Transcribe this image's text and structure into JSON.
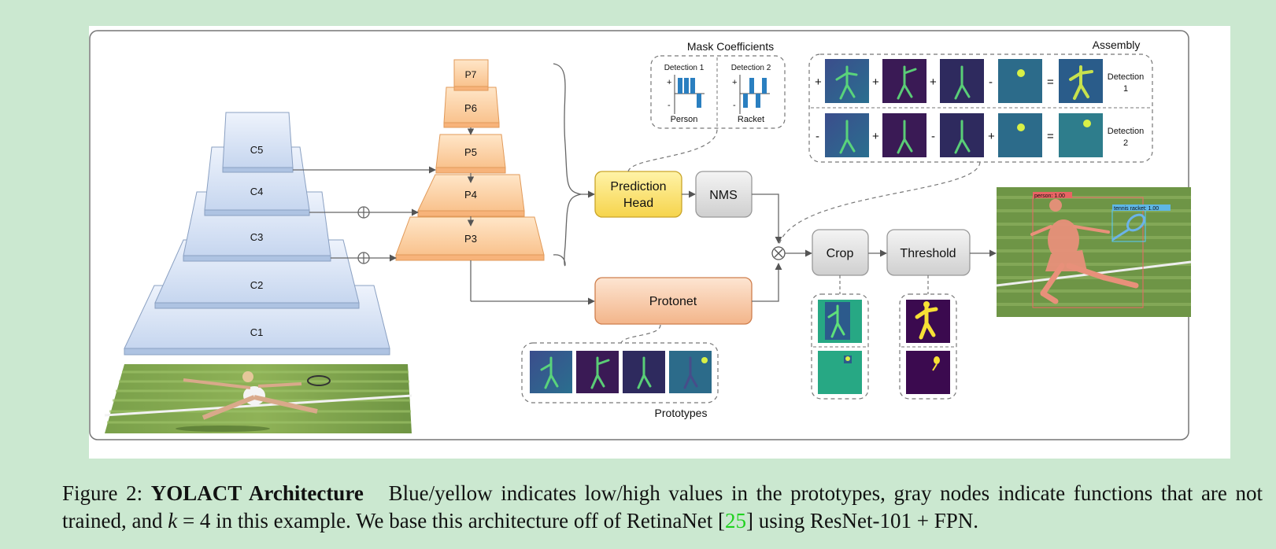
{
  "figure": {
    "backbone_labels": [
      "C1",
      "C2",
      "C3",
      "C4",
      "C5"
    ],
    "fpn_labels": [
      "P3",
      "P4",
      "P5",
      "P6",
      "P7"
    ],
    "prediction_head": [
      "Prediction",
      "Head"
    ],
    "nms": "NMS",
    "protonet": "Protonet",
    "crop": "Crop",
    "threshold": "Threshold",
    "prototypes_label": "Prototypes",
    "mask_coefficients": {
      "title": "Mask Coefficients",
      "detection1": "Detection 1",
      "detection2": "Detection 2",
      "class1": "Person",
      "class2": "Racket",
      "plus": "+",
      "minus": "-"
    },
    "assembly": {
      "title": "Assembly",
      "row1_signs": [
        "+",
        "+",
        "+",
        "-",
        "="
      ],
      "row2_signs": [
        "-",
        "+",
        "-",
        "+",
        "="
      ],
      "det1": [
        "Detection",
        "1"
      ],
      "det2": [
        "Detection",
        "2"
      ]
    },
    "output_labels": [
      "person: 1.00",
      "tennis racket: 1.00"
    ]
  },
  "caption": {
    "prefix": "Figure 2:",
    "title": "YOLACT Architecture",
    "line1": "Blue/yellow indicates low/high values in the prototypes, gray nodes indicate functions",
    "line2a": "that are not trained, and",
    "k": "k",
    "eq": "= 4",
    "line2b": "in this example. We base this architecture off of RetinaNet [",
    "ref": "25",
    "line2c": "] using ResNet-101 + FPN."
  }
}
